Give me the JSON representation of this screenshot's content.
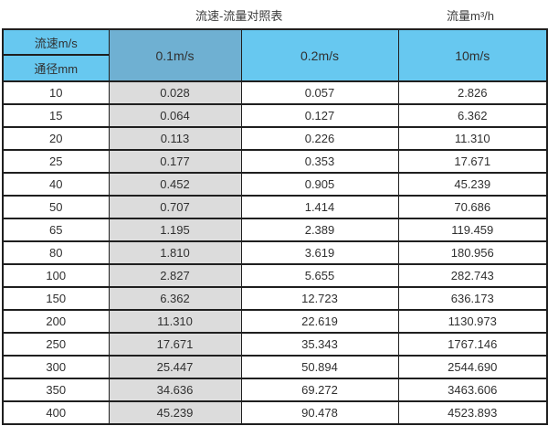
{
  "header": {
    "title": "流速-流量对照表",
    "unit_label": "流量m³/h"
  },
  "colors": {
    "header_blue": "#67c8f0",
    "header_muted_blue": "#6fb0d2",
    "first_value_column_gray": "#dcdcdc",
    "border": "#1f1f1f",
    "text": "#303030"
  },
  "chart_data": {
    "type": "table",
    "title": "流速-流量对照表",
    "value_unit": "流量m³/h",
    "corner": {
      "top": "流速m/s",
      "bottom": "通径mm"
    },
    "velocity_columns": [
      "0.1m/s",
      "0.2m/s",
      "10m/s"
    ],
    "rows": [
      {
        "diameter": "10",
        "values": [
          "0.028",
          "0.057",
          "2.826"
        ]
      },
      {
        "diameter": "15",
        "values": [
          "0.064",
          "0.127",
          "6.362"
        ]
      },
      {
        "diameter": "20",
        "values": [
          "0.113",
          "0.226",
          "11.310"
        ]
      },
      {
        "diameter": "25",
        "values": [
          "0.177",
          "0.353",
          "17.671"
        ]
      },
      {
        "diameter": "40",
        "values": [
          "0.452",
          "0.905",
          "45.239"
        ]
      },
      {
        "diameter": "50",
        "values": [
          "0.707",
          "1.414",
          "70.686"
        ]
      },
      {
        "diameter": "65",
        "values": [
          "1.195",
          "2.389",
          "119.459"
        ]
      },
      {
        "diameter": "80",
        "values": [
          "1.810",
          "3.619",
          "180.956"
        ]
      },
      {
        "diameter": "100",
        "values": [
          "2.827",
          "5.655",
          "282.743"
        ]
      },
      {
        "diameter": "150",
        "values": [
          "6.362",
          "12.723",
          "636.173"
        ]
      },
      {
        "diameter": "200",
        "values": [
          "11.310",
          "22.619",
          "1130.973"
        ]
      },
      {
        "diameter": "250",
        "values": [
          "17.671",
          "35.343",
          "1767.146"
        ]
      },
      {
        "diameter": "300",
        "values": [
          "25.447",
          "50.894",
          "2544.690"
        ]
      },
      {
        "diameter": "350",
        "values": [
          "34.636",
          "69.272",
          "3463.606"
        ]
      },
      {
        "diameter": "400",
        "values": [
          "45.239",
          "90.478",
          "4523.893"
        ]
      }
    ]
  }
}
